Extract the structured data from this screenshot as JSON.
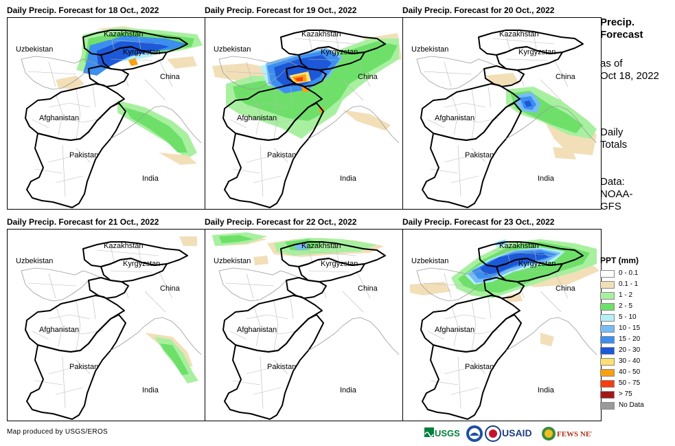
{
  "panels": [
    {
      "title": "Daily Precip. Forecast for 18 Oct., 2022",
      "day": 18
    },
    {
      "title": "Daily Precip. Forecast for 19 Oct., 2022",
      "day": 19
    },
    {
      "title": "Daily Precip. Forecast for 20 Oct., 2022",
      "day": 20
    },
    {
      "title": "Daily Precip. Forecast for 21 Oct., 2022",
      "day": 21
    },
    {
      "title": "Daily Precip. Forecast for 22 Oct., 2022",
      "day": 22
    },
    {
      "title": "Daily Precip. Forecast for 23 Oct., 2022",
      "day": 23
    }
  ],
  "country_labels": {
    "kazakhstan": "Kazakhstan",
    "uzbekistan": "Uzbekistan",
    "kyrgyzstan": "Kyrgyzstan",
    "china": "China",
    "afghanistan": "Afghanistan",
    "pakistan": "Pakistan",
    "india": "India"
  },
  "side": {
    "heading_line1": "Precip.",
    "heading_line2": "Forecast",
    "asof_line1": "as of",
    "asof_line2": "Oct 18, 2022",
    "daily_line1": "Daily",
    "daily_line2": "Totals",
    "data_line1": "Data:",
    "data_line2": "NOAA-",
    "data_line3": "GFS"
  },
  "legend": {
    "title": "PPT (mm)",
    "items": [
      {
        "label": "0 - 0.1",
        "color": "#ffffff"
      },
      {
        "label": "0.1 - 1",
        "color": "#f2dfb8"
      },
      {
        "label": "1 - 2",
        "color": "#a8f0a0"
      },
      {
        "label": "2 - 5",
        "color": "#6ee06a"
      },
      {
        "label": "5 - 10",
        "color": "#b4f0f8"
      },
      {
        "label": "10 - 15",
        "color": "#78bcf4"
      },
      {
        "label": "15 - 20",
        "color": "#3c8ef0"
      },
      {
        "label": "20 - 30",
        "color": "#1c58d8"
      },
      {
        "label": "30 - 40",
        "color": "#fce070"
      },
      {
        "label": "40 - 50",
        "color": "#f8a010"
      },
      {
        "label": "50 - 75",
        "color": "#f83c10"
      },
      {
        "label": "> 75",
        "color": "#a01818"
      },
      {
        "label": "No Data",
        "color": "#9a9a9a"
      }
    ]
  },
  "credit": "Map produced by USGS/EROS",
  "logos": {
    "usgs": "USGS",
    "usaid": "USAID",
    "fewsnet": "FEWS NET"
  }
}
